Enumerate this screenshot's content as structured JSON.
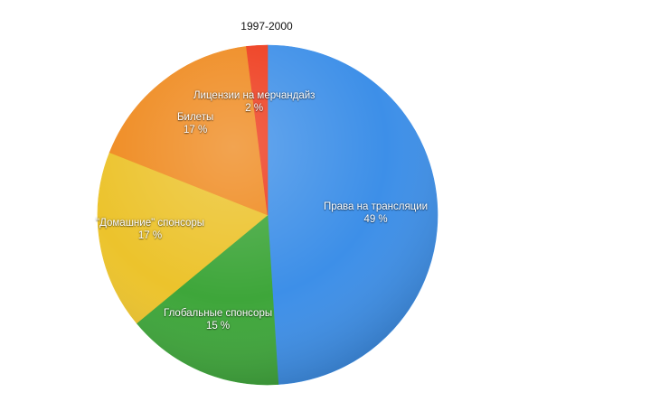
{
  "chart_data": {
    "type": "pie",
    "title": "1997-2000",
    "unit": "%",
    "start_angle_deg": 0,
    "direction": "clockwise",
    "legend": "none",
    "slices": [
      {
        "label": "Права на трансляции",
        "value": 49,
        "value_label": "49 %",
        "color": "#3d8fe8"
      },
      {
        "label": "Глобальные спонсоры",
        "value": 15,
        "value_label": "15 %",
        "color": "#3ea63a"
      },
      {
        "label": "\"Домашние\" спонсоры",
        "value": 17,
        "value_label": "17 %",
        "color": "#ecc32c"
      },
      {
        "label": "Билеты",
        "value": 17,
        "value_label": "17 %",
        "color": "#ef8a1f"
      },
      {
        "label": "Лицензии на мерчандайз",
        "value": 2,
        "value_label": "2 %",
        "color": "#ee3b1c"
      }
    ]
  }
}
